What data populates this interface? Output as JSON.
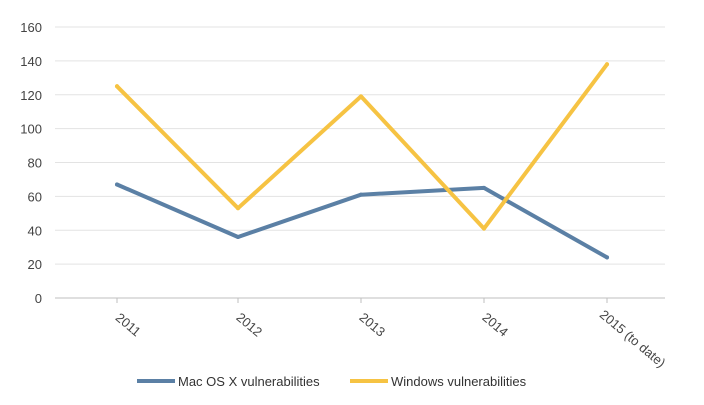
{
  "chart_data": {
    "type": "line",
    "title": "",
    "xlabel": "",
    "ylabel": "",
    "categories": [
      "2011",
      "2012",
      "2013",
      "2014",
      "2015  (to date)"
    ],
    "ylim": [
      0,
      160
    ],
    "yticks": [
      "0",
      "20",
      "40",
      "60",
      "80",
      "100",
      "120",
      "140",
      "160"
    ],
    "grid": true,
    "legend_position": "bottom",
    "series": [
      {
        "name": "Mac OS X vulnerabilities",
        "color": "#5b80a5",
        "values": [
          67,
          36,
          61,
          65,
          24
        ]
      },
      {
        "name": "Windows vulnerabilities",
        "color": "#f6c343",
        "values": [
          125,
          53,
          119,
          41,
          138
        ]
      }
    ]
  }
}
